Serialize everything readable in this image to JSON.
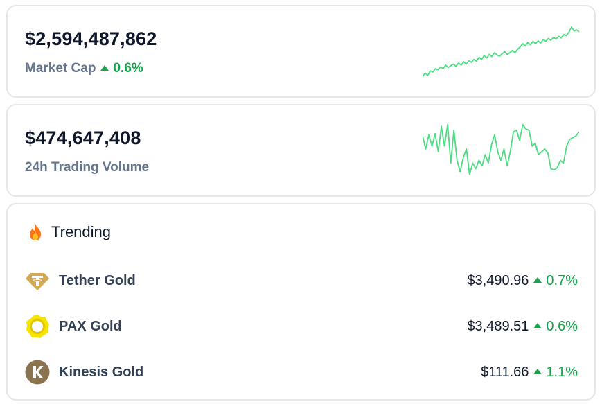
{
  "colors": {
    "positive": "#16a34a",
    "sparkline": "#4ade80",
    "label": "#64748b",
    "border": "#e5e7eb"
  },
  "market_cap": {
    "value": "$2,594,487,862",
    "label": "Market Cap",
    "change": "0.6%",
    "direction": "up",
    "sparkline": [
      0.08,
      0.14,
      0.1,
      0.18,
      0.16,
      0.22,
      0.2,
      0.25,
      0.22,
      0.28,
      0.24,
      0.27,
      0.3,
      0.26,
      0.32,
      0.28,
      0.34,
      0.3,
      0.36,
      0.33,
      0.38,
      0.35,
      0.42,
      0.38,
      0.45,
      0.41,
      0.47,
      0.43,
      0.5,
      0.46,
      0.44,
      0.48,
      0.52,
      0.47,
      0.5,
      0.54,
      0.5,
      0.56,
      0.6,
      0.66,
      0.62,
      0.68,
      0.64,
      0.7,
      0.66,
      0.71,
      0.67,
      0.73,
      0.7,
      0.75,
      0.72,
      0.77,
      0.74,
      0.79,
      0.76,
      0.82,
      0.8,
      0.86,
      0.95,
      0.88,
      0.9,
      0.87
    ]
  },
  "volume": {
    "value": "$474,647,408",
    "label": "24h Trading Volume",
    "sparkline": [
      0.78,
      0.55,
      0.8,
      0.6,
      0.82,
      0.5,
      0.95,
      0.6,
      0.98,
      0.3,
      0.88,
      0.35,
      0.15,
      0.4,
      0.55,
      0.1,
      0.3,
      0.2,
      0.35,
      0.25,
      0.45,
      0.3,
      0.62,
      0.8,
      0.5,
      0.35,
      0.55,
      0.25,
      0.5,
      0.85,
      0.88,
      0.7,
      0.98,
      0.9,
      0.88,
      0.6,
      0.65,
      0.45,
      0.5,
      0.55,
      0.48,
      0.2,
      0.18,
      0.22,
      0.35,
      0.3,
      0.6,
      0.72,
      0.75,
      0.78,
      0.85
    ]
  },
  "trending": {
    "title": "Trending",
    "coins": [
      {
        "name": "Tether Gold",
        "price": "$3,490.96",
        "change": "0.7%",
        "direction": "up",
        "logo": "tether-gold-logo"
      },
      {
        "name": "PAX Gold",
        "price": "$3,489.51",
        "change": "0.6%",
        "direction": "up",
        "logo": "pax-gold-logo"
      },
      {
        "name": "Kinesis Gold",
        "price": "$111.66",
        "change": "1.1%",
        "direction": "up",
        "logo": "kinesis-gold-logo"
      }
    ]
  }
}
